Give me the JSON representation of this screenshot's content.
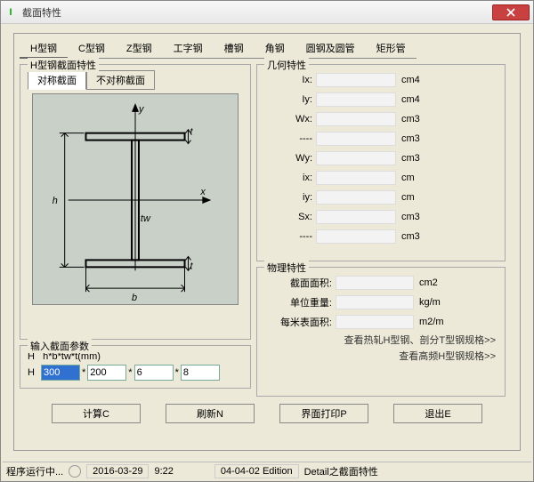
{
  "window": {
    "title": "截面特性"
  },
  "tabs": [
    "H型钢",
    "C型钢",
    "Z型钢",
    "工字钢",
    "槽钢",
    "角钢",
    "圆钢及圆管",
    "矩形管"
  ],
  "active_tab": "H型钢",
  "section_box": {
    "title": "H型钢截面特性"
  },
  "subtabs": {
    "a": "对称截面",
    "b": "不对称截面"
  },
  "diagram_labels": {
    "y": "y",
    "x": "x",
    "h": "h",
    "b": "b",
    "tw": "tw",
    "t_top": "t",
    "t_bot": "t"
  },
  "geo": {
    "title": "几何特性",
    "rows": [
      {
        "label": "Ix:",
        "unit": "cm4"
      },
      {
        "label": "Iy:",
        "unit": "cm4"
      },
      {
        "label": "Wx:",
        "unit": "cm3"
      },
      {
        "label": "----",
        "unit": "cm3"
      },
      {
        "label": "Wy:",
        "unit": "cm3"
      },
      {
        "label": "ix:",
        "unit": "cm"
      },
      {
        "label": "iy:",
        "unit": "cm"
      },
      {
        "label": "Sx:",
        "unit": "cm3"
      },
      {
        "label": "----",
        "unit": "cm3"
      }
    ]
  },
  "phys": {
    "title": "物理特性",
    "rows": [
      {
        "label": "截面面积:",
        "unit": "cm2"
      },
      {
        "label": "单位重量:",
        "unit": "kg/m"
      },
      {
        "label": "每米表面积:",
        "unit": "m2/m"
      }
    ],
    "link1": "查看热轧H型钢、剖分T型钢规格>>",
    "link2": "查看高频H型钢规格>>"
  },
  "params": {
    "title": "输入截面参数",
    "formula_label": "H",
    "formula": "h*b*tw*t(mm)",
    "prefix": "H",
    "h": "300",
    "b": "200",
    "tw": "6",
    "t": "8",
    "sep": "*"
  },
  "buttons": {
    "calc": "计算C",
    "refresh": "刷新N",
    "print": "界面打印P",
    "exit": "退出E"
  },
  "status": {
    "running": "程序运行中...",
    "date": "2016-03-29",
    "time": "9:22",
    "edition": "04-04-02 Edition",
    "detail": "Detail之截面特性"
  }
}
